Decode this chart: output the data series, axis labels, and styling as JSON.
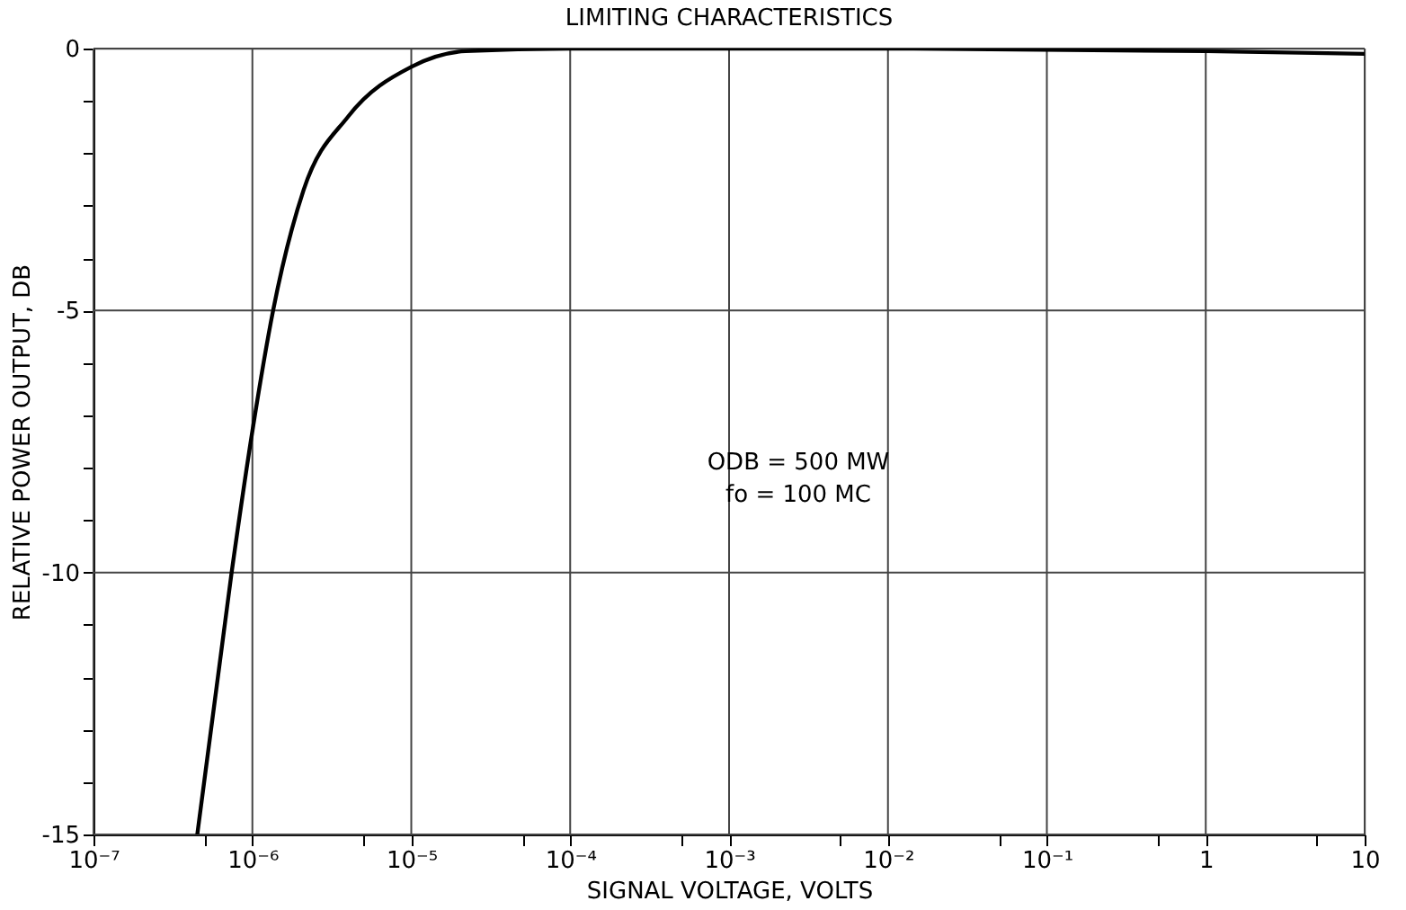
{
  "chart_data": {
    "type": "line",
    "title": "LIMITING CHARACTERISTICS",
    "xlabel": "SIGNAL VOLTAGE, VOLTS",
    "ylabel": "RELATIVE POWER OUTPUT, DB",
    "annotations": [
      "ODB = 500 MW",
      "fo = 100 MC"
    ],
    "log": "x",
    "grid": true,
    "marker": "none",
    "line_style": "solid",
    "xlim": [
      1e-07,
      10
    ],
    "ylim": [
      -15,
      0
    ],
    "xticks": [
      {
        "value": 1e-07,
        "label": "10⁻⁷"
      },
      {
        "value": 5e-07,
        "label": null
      },
      {
        "value": 1e-06,
        "label": "10⁻⁶"
      },
      {
        "value": 5e-06,
        "label": null
      },
      {
        "value": 1e-05,
        "label": "10⁻⁵"
      },
      {
        "value": 5e-05,
        "label": null
      },
      {
        "value": 0.0001,
        "label": "10⁻⁴"
      },
      {
        "value": 0.0005,
        "label": null
      },
      {
        "value": 0.001,
        "label": "10⁻³"
      },
      {
        "value": 0.005,
        "label": null
      },
      {
        "value": 0.01,
        "label": "10⁻²"
      },
      {
        "value": 0.05,
        "label": null
      },
      {
        "value": 0.1,
        "label": "10⁻¹"
      },
      {
        "value": 0.5,
        "label": null
      },
      1,
      {
        "value": 5,
        "label": null
      },
      10
    ],
    "yticks": [
      -15,
      {
        "value": -14,
        "label": null
      },
      {
        "value": -13,
        "label": null
      },
      {
        "value": -12,
        "label": null
      },
      {
        "value": -11,
        "label": null
      },
      -10,
      {
        "value": -9,
        "label": null
      },
      {
        "value": -8,
        "label": null
      },
      {
        "value": -7,
        "label": null
      },
      {
        "value": -6,
        "label": null
      },
      -5,
      {
        "value": -4,
        "label": null
      },
      {
        "value": -3,
        "label": null
      },
      {
        "value": -2,
        "label": null
      },
      {
        "value": -1,
        "label": null
      },
      0
    ],
    "series": [
      {
        "color": "#000000",
        "x": [
          4.5e-07,
          7.4e-07,
          1e-06,
          1.35e-06,
          2.1e-06,
          4e-06,
          1e-05,
          2.2e-05,
          0.0001,
          0.01,
          1,
          10
        ],
        "values": [
          -15,
          -10,
          -7.3,
          -5,
          -2.7,
          -1.3,
          -0.35,
          -0.05,
          0,
          0,
          -0.05,
          -0.1
        ]
      }
    ]
  }
}
